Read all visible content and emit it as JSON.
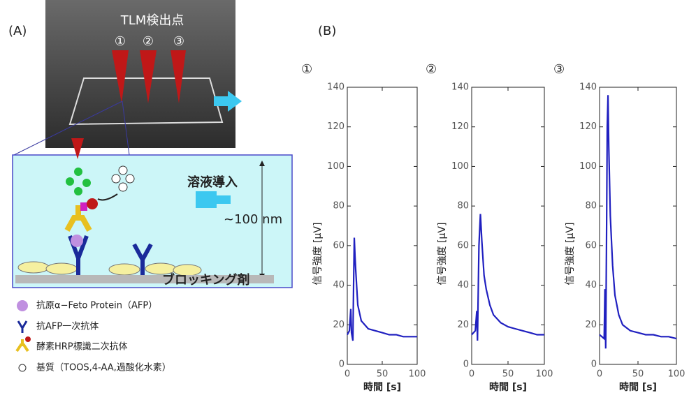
{
  "panel_labels": [
    "(A)",
    "(B)"
  ],
  "photo": {
    "title": "TLM検出点",
    "points": [
      "①",
      "②",
      "③"
    ]
  },
  "diagram": {
    "flow": "溶液導入",
    "height": "~100 nm",
    "layer": "ブロッキング剤"
  },
  "legend": [
    "抗原α−Feto Protein（AFP）",
    "抗AFP一次抗体",
    "酵素HRP標識二次抗体",
    "基質（TOOS,4-AA,過酸化水素）"
  ],
  "chart_data": [
    {
      "type": "line",
      "title": "①",
      "xlabel": "時間 [s]",
      "ylabel": "信号強度 [μV]",
      "color": "#2020c0",
      "x": [
        0,
        3,
        5,
        6,
        8,
        9,
        10,
        11,
        12,
        15,
        20,
        30,
        40,
        50,
        60,
        70,
        80,
        90,
        100
      ],
      "values": [
        15,
        17,
        28,
        16,
        12,
        40,
        64,
        55,
        48,
        30,
        22,
        18,
        17,
        16,
        15,
        15,
        14,
        14,
        14
      ],
      "xlim": [
        0,
        100
      ],
      "xticks": [
        0,
        50,
        100
      ],
      "ylim": [
        0,
        140
      ],
      "yticks": [
        0,
        20,
        40,
        60,
        80,
        100,
        120,
        140
      ]
    },
    {
      "type": "line",
      "title": "②",
      "xlabel": "時間 [s]",
      "ylabel": "信号強度 [μV]",
      "color": "#2020c0",
      "x": [
        0,
        5,
        7,
        8,
        10,
        12,
        14,
        17,
        20,
        25,
        30,
        40,
        50,
        60,
        70,
        80,
        90,
        100
      ],
      "values": [
        15,
        17,
        27,
        12,
        60,
        76,
        62,
        45,
        38,
        30,
        25,
        21,
        19,
        18,
        17,
        16,
        15,
        15
      ],
      "xlim": [
        0,
        100
      ],
      "xticks": [
        0,
        50,
        100
      ],
      "ylim": [
        0,
        140
      ],
      "yticks": [
        0,
        20,
        40,
        60,
        80,
        100,
        120,
        140
      ]
    },
    {
      "type": "line",
      "title": "③",
      "xlabel": "時間 [s]",
      "ylabel": "信号強度 [μV]",
      "color": "#2020c0",
      "x": [
        0,
        6,
        7,
        8,
        9,
        10,
        11,
        12,
        14,
        17,
        20,
        25,
        30,
        40,
        50,
        60,
        70,
        80,
        90,
        100
      ],
      "values": [
        15,
        13,
        38,
        8,
        60,
        120,
        136,
        110,
        75,
        50,
        35,
        25,
        20,
        17,
        16,
        15,
        15,
        14,
        14,
        13
      ],
      "xlim": [
        0,
        100
      ],
      "xticks": [
        0,
        50,
        100
      ],
      "ylim": [
        0,
        140
      ],
      "yticks": [
        0,
        20,
        40,
        60,
        80,
        100,
        120,
        140
      ]
    }
  ]
}
